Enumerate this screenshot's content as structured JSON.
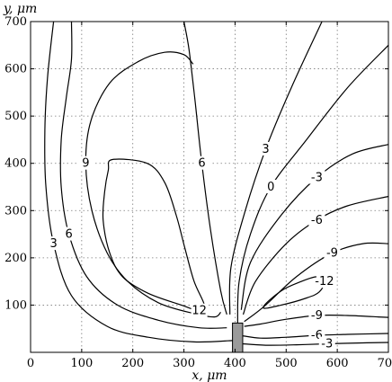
{
  "chart_data": {
    "type": "contour",
    "xlabel": "x, μm",
    "ylabel": "y, μm",
    "xlim": [
      0,
      700
    ],
    "ylim": [
      0,
      700
    ],
    "x_ticks": [
      0,
      100,
      200,
      300,
      400,
      500,
      600,
      700
    ],
    "y_ticks": [
      100,
      200,
      300,
      400,
      500,
      600,
      700
    ],
    "grid": true,
    "electrode": {
      "x0": 395,
      "x1": 415,
      "y0": 0,
      "y1": 62
    },
    "contours": [
      {
        "label": "12",
        "closed": true,
        "points": [
          [
            160,
            408
          ],
          [
            228,
            400
          ],
          [
            262,
            360
          ],
          [
            285,
            290
          ],
          [
            302,
            220
          ],
          [
            320,
            150
          ],
          [
            340,
            100
          ],
          [
            330,
            88
          ],
          [
            295,
            100
          ],
          [
            230,
            125
          ],
          [
            180,
            160
          ],
          [
            155,
            210
          ],
          [
            142,
            280
          ],
          [
            145,
            340
          ],
          [
            152,
            385
          ]
        ]
      },
      {
        "label": "9",
        "closed": false,
        "points": [
          [
            372,
            85
          ],
          [
            360,
            75
          ],
          [
            320,
            82
          ],
          [
            250,
            105
          ],
          [
            190,
            150
          ],
          [
            150,
            210
          ],
          [
            120,
            300
          ],
          [
            108,
            400
          ],
          [
            118,
            490
          ],
          [
            155,
            570
          ],
          [
            210,
            615
          ],
          [
            262,
            635
          ],
          [
            300,
            630
          ],
          [
            318,
            610
          ]
        ]
      },
      {
        "label": "6",
        "closed": false,
        "points": [
          [
            384,
            52
          ],
          [
            330,
            52
          ],
          [
            250,
            68
          ],
          [
            170,
            100
          ],
          [
            110,
            160
          ],
          [
            75,
            250
          ],
          [
            60,
            350
          ],
          [
            60,
            450
          ],
          [
            70,
            540
          ],
          [
            80,
            620
          ],
          [
            80,
            700
          ]
        ]
      },
      {
        "label": "3",
        "closed": false,
        "points": [
          [
            395,
            25
          ],
          [
            320,
            22
          ],
          [
            230,
            32
          ],
          [
            150,
            55
          ],
          [
            80,
            120
          ],
          [
            45,
            230
          ],
          [
            30,
            350
          ],
          [
            28,
            470
          ],
          [
            33,
            580
          ],
          [
            45,
            700
          ]
        ]
      },
      {
        "label": "6",
        "closed": false,
        "points": [
          [
            384,
            80
          ],
          [
            372,
            130
          ],
          [
            352,
            260
          ],
          [
            335,
            400
          ],
          [
            322,
            530
          ],
          [
            310,
            640
          ],
          [
            300,
            700
          ]
        ]
      },
      {
        "label": "3",
        "closed": false,
        "points": [
          [
            390,
            80
          ],
          [
            392,
            180
          ],
          [
            420,
            300
          ],
          [
            460,
            430
          ],
          [
            510,
            560
          ],
          [
            570,
            700
          ]
        ]
      },
      {
        "label": "0",
        "closed": false,
        "points": [
          [
            405,
            62
          ],
          [
            408,
            150
          ],
          [
            430,
            250
          ],
          [
            470,
            350
          ],
          [
            540,
            450
          ],
          [
            620,
            560
          ],
          [
            700,
            650
          ]
        ]
      },
      {
        "label": "-3",
        "closed": false,
        "points": [
          [
            412,
            90
          ],
          [
            430,
            190
          ],
          [
            490,
            290
          ],
          [
            560,
            370
          ],
          [
            630,
            420
          ],
          [
            700,
            440
          ]
        ]
      },
      {
        "label": "-6",
        "closed": false,
        "points": [
          [
            416,
            80
          ],
          [
            440,
            150
          ],
          [
            500,
            230
          ],
          [
            560,
            280
          ],
          [
            620,
            310
          ],
          [
            700,
            330
          ]
        ]
      },
      {
        "label": "-9",
        "closed": false,
        "points": [
          [
            418,
            65
          ],
          [
            460,
            100
          ],
          [
            520,
            160
          ],
          [
            590,
            210
          ],
          [
            650,
            230
          ],
          [
            700,
            230
          ]
        ]
      },
      {
        "label": "-12",
        "closed": true,
        "points": [
          [
            455,
            95
          ],
          [
            490,
            130
          ],
          [
            530,
            150
          ],
          [
            560,
            160
          ],
          [
            575,
            150
          ],
          [
            565,
            128
          ],
          [
            540,
            115
          ],
          [
            490,
            100
          ]
        ]
      },
      {
        "label": "-9",
        "closed": false,
        "points": [
          [
            418,
            55
          ],
          [
            450,
            60
          ],
          [
            500,
            70
          ],
          [
            560,
            78
          ],
          [
            620,
            78
          ],
          [
            680,
            75
          ],
          [
            700,
            74
          ]
        ]
      },
      {
        "label": "-6",
        "closed": false,
        "points": [
          [
            415,
            35
          ],
          [
            450,
            30
          ],
          [
            500,
            32
          ],
          [
            560,
            36
          ],
          [
            620,
            38
          ],
          [
            700,
            40
          ]
        ]
      },
      {
        "label": "-3",
        "closed": false,
        "points": [
          [
            415,
            18
          ],
          [
            460,
            15
          ],
          [
            520,
            16
          ],
          [
            580,
            18
          ],
          [
            650,
            20
          ],
          [
            700,
            21
          ]
        ]
      }
    ]
  }
}
